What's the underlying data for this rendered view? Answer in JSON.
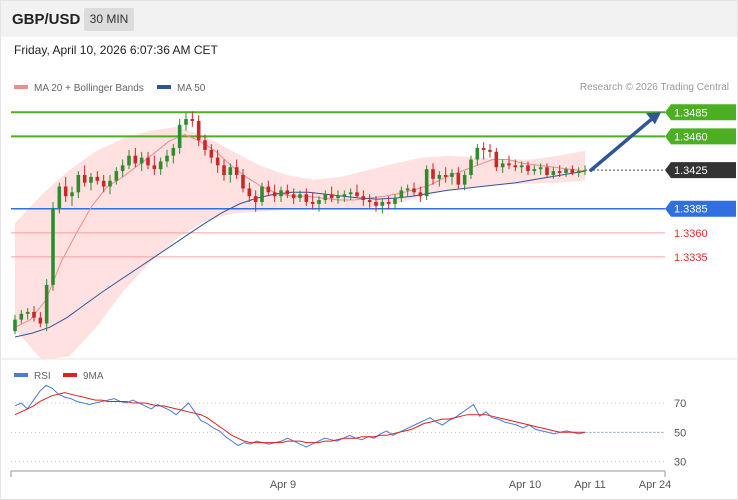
{
  "header": {
    "symbol": "GBP/USD",
    "timeframe": "30 MIN"
  },
  "datetime": "Friday, April 10, 2026 6:07:36 AM CET",
  "chart_data": [
    {
      "type": "candlestick",
      "legend": [
        {
          "name": "MA 20 + Bollinger Bands",
          "color": "#f08c8c"
        },
        {
          "name": "MA 50",
          "color": "#2f5597"
        }
      ],
      "credit": "Research © 2026 Trading Central",
      "ylim": [
        1.3225,
        1.3505
      ],
      "levels": [
        {
          "label": "1.3485",
          "value": 1.3485,
          "kind": "resistance",
          "color": "#4caf22"
        },
        {
          "label": "1.3460",
          "value": 1.346,
          "kind": "resistance",
          "color": "#4caf22"
        },
        {
          "label": "1.3425",
          "value": 1.3425,
          "kind": "last",
          "color": "#333333"
        },
        {
          "label": "1.3385",
          "value": 1.3385,
          "kind": "pivot",
          "color": "#2f6fe0"
        },
        {
          "label": "1.3360",
          "value": 1.336,
          "kind": "support",
          "color": "#e0302a"
        },
        {
          "label": "1.3335",
          "value": 1.3335,
          "kind": "support",
          "color": "#e0302a"
        }
      ],
      "colors": {
        "up": "#2e8b2e",
        "down": "#c82828",
        "band": "#ffdede",
        "ma20": "#f08c8c",
        "ma50": "#2f5597",
        "arrow": "#2f5597"
      },
      "candles": [
        [
          1.3258,
          1.3275,
          1.3255,
          1.327
        ],
        [
          1.327,
          1.328,
          1.3266,
          1.3276
        ],
        [
          1.3276,
          1.3282,
          1.327,
          1.3278
        ],
        [
          1.3278,
          1.3284,
          1.3268,
          1.3272
        ],
        [
          1.3272,
          1.3278,
          1.3262,
          1.3266
        ],
        [
          1.3266,
          1.3312,
          1.3258,
          1.3306
        ],
        [
          1.3306,
          1.3392,
          1.33,
          1.3385
        ],
        [
          1.3385,
          1.3412,
          1.338,
          1.3408
        ],
        [
          1.3408,
          1.3418,
          1.3392,
          1.3398
        ],
        [
          1.3398,
          1.3408,
          1.3388,
          1.3402
        ],
        [
          1.3402,
          1.3424,
          1.3396,
          1.342
        ],
        [
          1.342,
          1.343,
          1.3408,
          1.3412
        ],
        [
          1.3412,
          1.3422,
          1.3404,
          1.3418
        ],
        [
          1.3418,
          1.3424,
          1.341,
          1.3414
        ],
        [
          1.3414,
          1.342,
          1.3402,
          1.3408
        ],
        [
          1.3408,
          1.342,
          1.34,
          1.3414
        ],
        [
          1.3414,
          1.3428,
          1.341,
          1.3424
        ],
        [
          1.3424,
          1.3436,
          1.3418,
          1.343
        ],
        [
          1.343,
          1.3446,
          1.3426,
          1.344
        ],
        [
          1.344,
          1.3448,
          1.3428,
          1.3432
        ],
        [
          1.3432,
          1.3444,
          1.3424,
          1.3438
        ],
        [
          1.3438,
          1.3444,
          1.3426,
          1.343
        ],
        [
          1.343,
          1.344,
          1.342,
          1.3426
        ],
        [
          1.3426,
          1.3438,
          1.342,
          1.3434
        ],
        [
          1.3434,
          1.3446,
          1.3428,
          1.344
        ],
        [
          1.344,
          1.3452,
          1.3432,
          1.3448
        ],
        [
          1.3448,
          1.3478,
          1.3442,
          1.3472
        ],
        [
          1.3472,
          1.3484,
          1.3466,
          1.3478
        ],
        [
          1.3478,
          1.3486,
          1.347,
          1.3476
        ],
        [
          1.3476,
          1.3482,
          1.345,
          1.3456
        ],
        [
          1.3456,
          1.3462,
          1.344,
          1.3446
        ],
        [
          1.3446,
          1.3452,
          1.3432,
          1.3438
        ],
        [
          1.3438,
          1.3446,
          1.3422,
          1.343
        ],
        [
          1.343,
          1.3436,
          1.3414,
          1.342
        ],
        [
          1.342,
          1.3432,
          1.3412,
          1.3428
        ],
        [
          1.3428,
          1.3436,
          1.3416,
          1.342
        ],
        [
          1.342,
          1.3426,
          1.3402,
          1.3406
        ],
        [
          1.3406,
          1.3412,
          1.3392,
          1.3398
        ],
        [
          1.3398,
          1.3404,
          1.3382,
          1.3392
        ],
        [
          1.3392,
          1.3412,
          1.3388,
          1.3408
        ],
        [
          1.3408,
          1.3414,
          1.3398,
          1.3402
        ],
        [
          1.3402,
          1.341,
          1.3392,
          1.3398
        ],
        [
          1.3398,
          1.3408,
          1.3392,
          1.3404
        ],
        [
          1.3404,
          1.341,
          1.3396,
          1.34
        ],
        [
          1.34,
          1.3406,
          1.339,
          1.3396
        ],
        [
          1.3396,
          1.3404,
          1.3392,
          1.34
        ],
        [
          1.34,
          1.3406,
          1.3388,
          1.3392
        ],
        [
          1.3392,
          1.3402,
          1.3384,
          1.339
        ],
        [
          1.339,
          1.3398,
          1.3382,
          1.3394
        ],
        [
          1.3394,
          1.3404,
          1.339,
          1.34
        ],
        [
          1.34,
          1.3408,
          1.3392,
          1.3396
        ],
        [
          1.3396,
          1.3404,
          1.339,
          1.3398
        ],
        [
          1.3398,
          1.3404,
          1.3392,
          1.34
        ],
        [
          1.34,
          1.3406,
          1.3394,
          1.3402
        ],
        [
          1.3402,
          1.341,
          1.3396,
          1.3398
        ],
        [
          1.3398,
          1.3404,
          1.3388,
          1.3394
        ],
        [
          1.3394,
          1.34,
          1.3386,
          1.3392
        ],
        [
          1.3392,
          1.3398,
          1.3382,
          1.3388
        ],
        [
          1.3388,
          1.3396,
          1.338,
          1.3392
        ],
        [
          1.3392,
          1.3398,
          1.3384,
          1.339
        ],
        [
          1.339,
          1.34,
          1.3384,
          1.3396
        ],
        [
          1.3396,
          1.3408,
          1.3392,
          1.3404
        ],
        [
          1.3404,
          1.341,
          1.3398,
          1.3406
        ],
        [
          1.3406,
          1.3412,
          1.3398,
          1.3402
        ],
        [
          1.3402,
          1.3408,
          1.3392,
          1.3398
        ],
        [
          1.3398,
          1.343,
          1.3394,
          1.3426
        ],
        [
          1.3426,
          1.3432,
          1.341,
          1.3416
        ],
        [
          1.3416,
          1.3424,
          1.3408,
          1.342
        ],
        [
          1.342,
          1.3428,
          1.3412,
          1.3418
        ],
        [
          1.3418,
          1.3426,
          1.341,
          1.3422
        ],
        [
          1.3422,
          1.3428,
          1.3406,
          1.341
        ],
        [
          1.341,
          1.3424,
          1.3404,
          1.342
        ],
        [
          1.342,
          1.344,
          1.3416,
          1.3436
        ],
        [
          1.3436,
          1.3452,
          1.343,
          1.3448
        ],
        [
          1.3448,
          1.3454,
          1.3436,
          1.3446
        ],
        [
          1.3446,
          1.3452,
          1.3438,
          1.3444
        ],
        [
          1.3444,
          1.3448,
          1.3424,
          1.3428
        ],
        [
          1.3428,
          1.3436,
          1.3422,
          1.3432
        ],
        [
          1.3432,
          1.344,
          1.3426,
          1.343
        ],
        [
          1.343,
          1.3436,
          1.3424,
          1.3428
        ],
        [
          1.3428,
          1.3434,
          1.3422,
          1.343
        ],
        [
          1.343,
          1.3434,
          1.342,
          1.3424
        ],
        [
          1.3424,
          1.343,
          1.342,
          1.3426
        ],
        [
          1.3426,
          1.3432,
          1.342,
          1.3428
        ],
        [
          1.3428,
          1.3432,
          1.3418,
          1.342
        ],
        [
          1.342,
          1.3428,
          1.3416,
          1.3424
        ],
        [
          1.3424,
          1.343,
          1.3418,
          1.3422
        ],
        [
          1.3422,
          1.3428,
          1.3418,
          1.3426
        ],
        [
          1.3426,
          1.343,
          1.342,
          1.3422
        ],
        [
          1.3422,
          1.3428,
          1.3418,
          1.3424
        ],
        [
          1.3424,
          1.343,
          1.342,
          1.3425
        ]
      ],
      "bb_upper": [
        1.337,
        1.34,
        1.3425,
        1.3445,
        1.3458,
        1.3466,
        1.347,
        1.346,
        1.3445,
        1.343,
        1.342,
        1.3415,
        1.3418,
        1.3425,
        1.3432,
        1.3438,
        1.344,
        1.3438,
        1.3436,
        1.3436,
        1.344,
        1.3445
      ],
      "bb_lower": [
        1.326,
        1.3228,
        1.3232,
        1.3262,
        1.33,
        1.333,
        1.3355,
        1.3372,
        1.338,
        1.3382,
        1.3384,
        1.3386,
        1.3385,
        1.3386,
        1.339,
        1.3398,
        1.3404,
        1.3408,
        1.341,
        1.3411,
        1.3412,
        1.3414
      ],
      "ma20": [
        1.3262,
        1.327,
        1.329,
        1.333,
        1.336,
        1.3388,
        1.3408,
        1.3418,
        1.343,
        1.3442,
        1.3455,
        1.3462,
        1.3455,
        1.3445,
        1.343,
        1.3418,
        1.3408,
        1.3401,
        1.3398,
        1.3398,
        1.3396,
        1.3394,
        1.3394,
        1.3396,
        1.3398,
        1.3401,
        1.3405,
        1.341,
        1.3418,
        1.3424,
        1.343,
        1.3436,
        1.3436,
        1.3432,
        1.343,
        1.3428,
        1.3426,
        1.3424
      ],
      "ma50": [
        1.3252,
        1.3256,
        1.3262,
        1.3272,
        1.3285,
        1.3298,
        1.331,
        1.3322,
        1.3334,
        1.3346,
        1.3358,
        1.337,
        1.3381,
        1.339,
        1.3396,
        1.34,
        1.3402,
        1.3402,
        1.34,
        1.3398,
        1.3396,
        1.3395,
        1.3396,
        1.3398,
        1.3401,
        1.3404,
        1.3406,
        1.3408,
        1.341,
        1.3412,
        1.3415,
        1.3418,
        1.3421,
        1.3424
      ],
      "projection": [
        1.3425,
        1.3485
      ]
    },
    {
      "type": "line",
      "legend": [
        {
          "name": "RSI",
          "color": "#4a7bd8"
        },
        {
          "name": "9MA",
          "color": "#e02020"
        }
      ],
      "ylim": [
        25,
        85
      ],
      "ticks": [
        70,
        50,
        30
      ],
      "rsi": [
        68,
        70,
        66,
        72,
        78,
        82,
        80,
        76,
        74,
        73,
        71,
        70,
        69,
        70,
        71,
        72,
        73,
        71,
        70,
        72,
        70,
        68,
        66,
        69,
        67,
        65,
        62,
        66,
        70,
        64,
        58,
        56,
        53,
        51,
        47,
        44,
        41,
        43,
        42,
        44,
        43,
        42,
        43,
        44,
        46,
        44,
        42,
        40,
        42,
        44,
        46,
        45,
        44,
        46,
        48,
        46,
        45,
        47,
        46,
        49,
        51,
        48,
        50,
        52,
        54,
        56,
        58,
        60,
        57,
        55,
        58,
        60,
        63,
        66,
        69,
        61,
        64,
        60,
        59,
        57,
        56,
        55,
        53,
        55,
        52,
        51,
        50,
        49,
        50,
        51,
        50,
        49,
        50
      ],
      "ma9": [
        62,
        64,
        66,
        68,
        71,
        73,
        75,
        76,
        77,
        76,
        75,
        74,
        73,
        72,
        72,
        71,
        71,
        71,
        71,
        70,
        70,
        70,
        69,
        68,
        68,
        67,
        66,
        65,
        64,
        63,
        62,
        60,
        57,
        54,
        51,
        48,
        46,
        44,
        43,
        43,
        43,
        43,
        43,
        43,
        44,
        44,
        44,
        43,
        43,
        43,
        44,
        44,
        45,
        46,
        46,
        46,
        47,
        47,
        47,
        48,
        48,
        49,
        50,
        51,
        52,
        54,
        56,
        57,
        58,
        59,
        59,
        60,
        61,
        62,
        62,
        62,
        62,
        61,
        60,
        59,
        58,
        57,
        56,
        55,
        54,
        53,
        52,
        51,
        50,
        50,
        50,
        50,
        50
      ],
      "xaxis": [
        "Apr 9",
        "Apr 10",
        "Apr 11",
        "Apr 24"
      ]
    }
  ]
}
